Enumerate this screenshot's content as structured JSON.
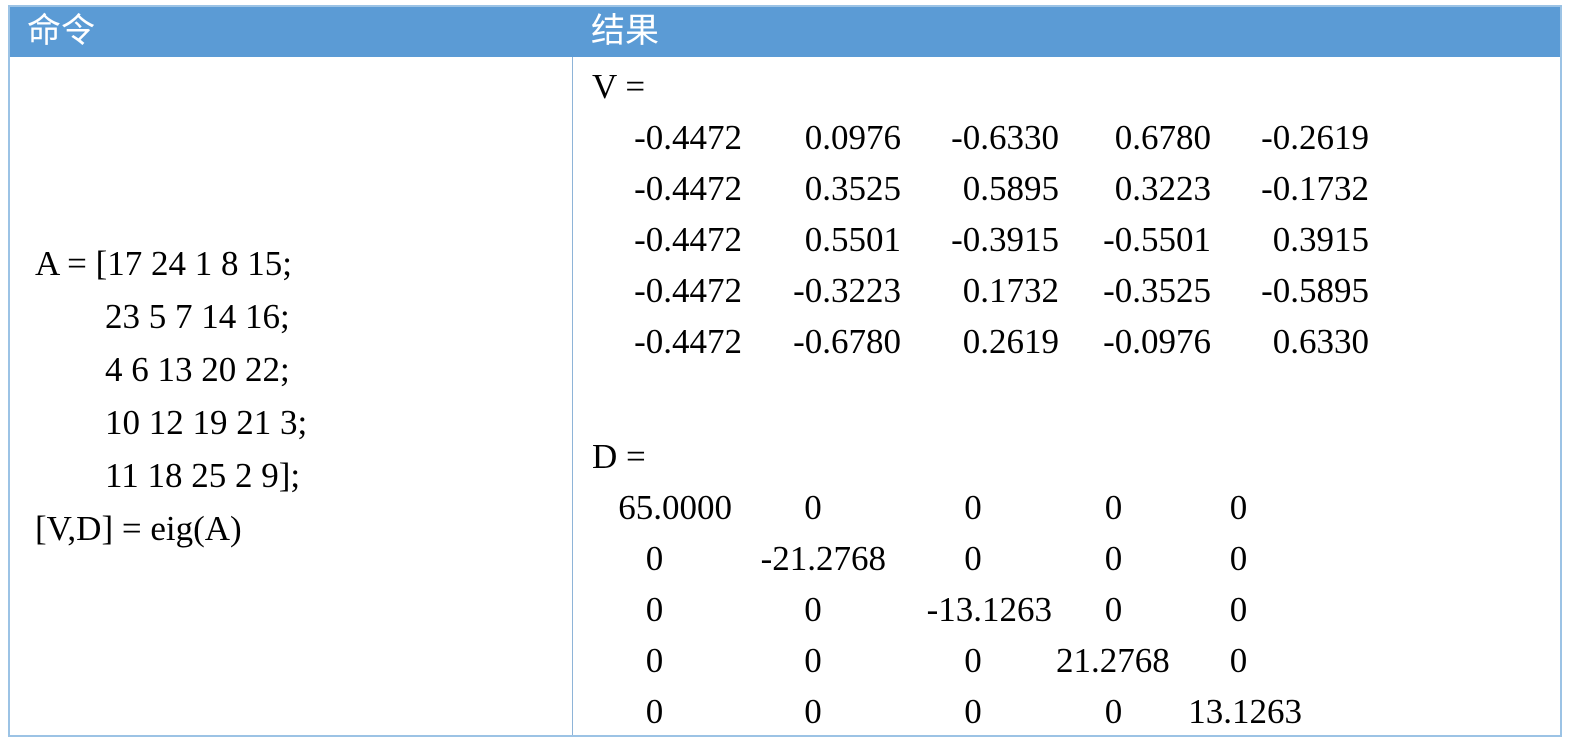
{
  "colors": {
    "header_bg": "#5B9BD5",
    "header_fg": "#FFFFFF",
    "border": "#9CC3E5",
    "divider": "#8EB4D8",
    "text": "#000000",
    "page_bg": "#FFFFFF"
  },
  "table": {
    "headers": {
      "command": "命令",
      "result": "结果"
    },
    "command": {
      "lines": [
        "A = [17 24 1 8 15;",
        "        23 5 7 14 16;",
        "        4 6 13 20 22;",
        "        10 12 19 21 3;",
        "        11 18 25 2 9];",
        "[V,D] = eig(A)"
      ]
    },
    "result": {
      "v_label": "V =",
      "v_matrix": [
        [
          "-0.4472",
          "0.0976",
          "-0.6330",
          "0.6780",
          "-0.2619"
        ],
        [
          "-0.4472",
          "0.3525",
          "0.5895",
          "0.3223",
          "-0.1732"
        ],
        [
          "-0.4472",
          "0.5501",
          "-0.3915",
          "-0.5501",
          "0.3915"
        ],
        [
          "-0.4472",
          "-0.3223",
          "0.1732",
          "-0.3525",
          "-0.5895"
        ],
        [
          "-0.4472",
          "-0.6780",
          "0.2619",
          "-0.0976",
          "0.6330"
        ]
      ],
      "d_label": "D =",
      "d_matrix": [
        [
          "65.0000",
          "0",
          "0",
          "0",
          "0"
        ],
        [
          "0",
          "-21.2768",
          "0",
          "0",
          "0"
        ],
        [
          "0",
          "0",
          "-13.1263",
          "0",
          "0"
        ],
        [
          "0",
          "0",
          "0",
          "21.2768",
          "0"
        ],
        [
          "0",
          "0",
          "0",
          "0",
          "13.1263"
        ]
      ]
    }
  }
}
